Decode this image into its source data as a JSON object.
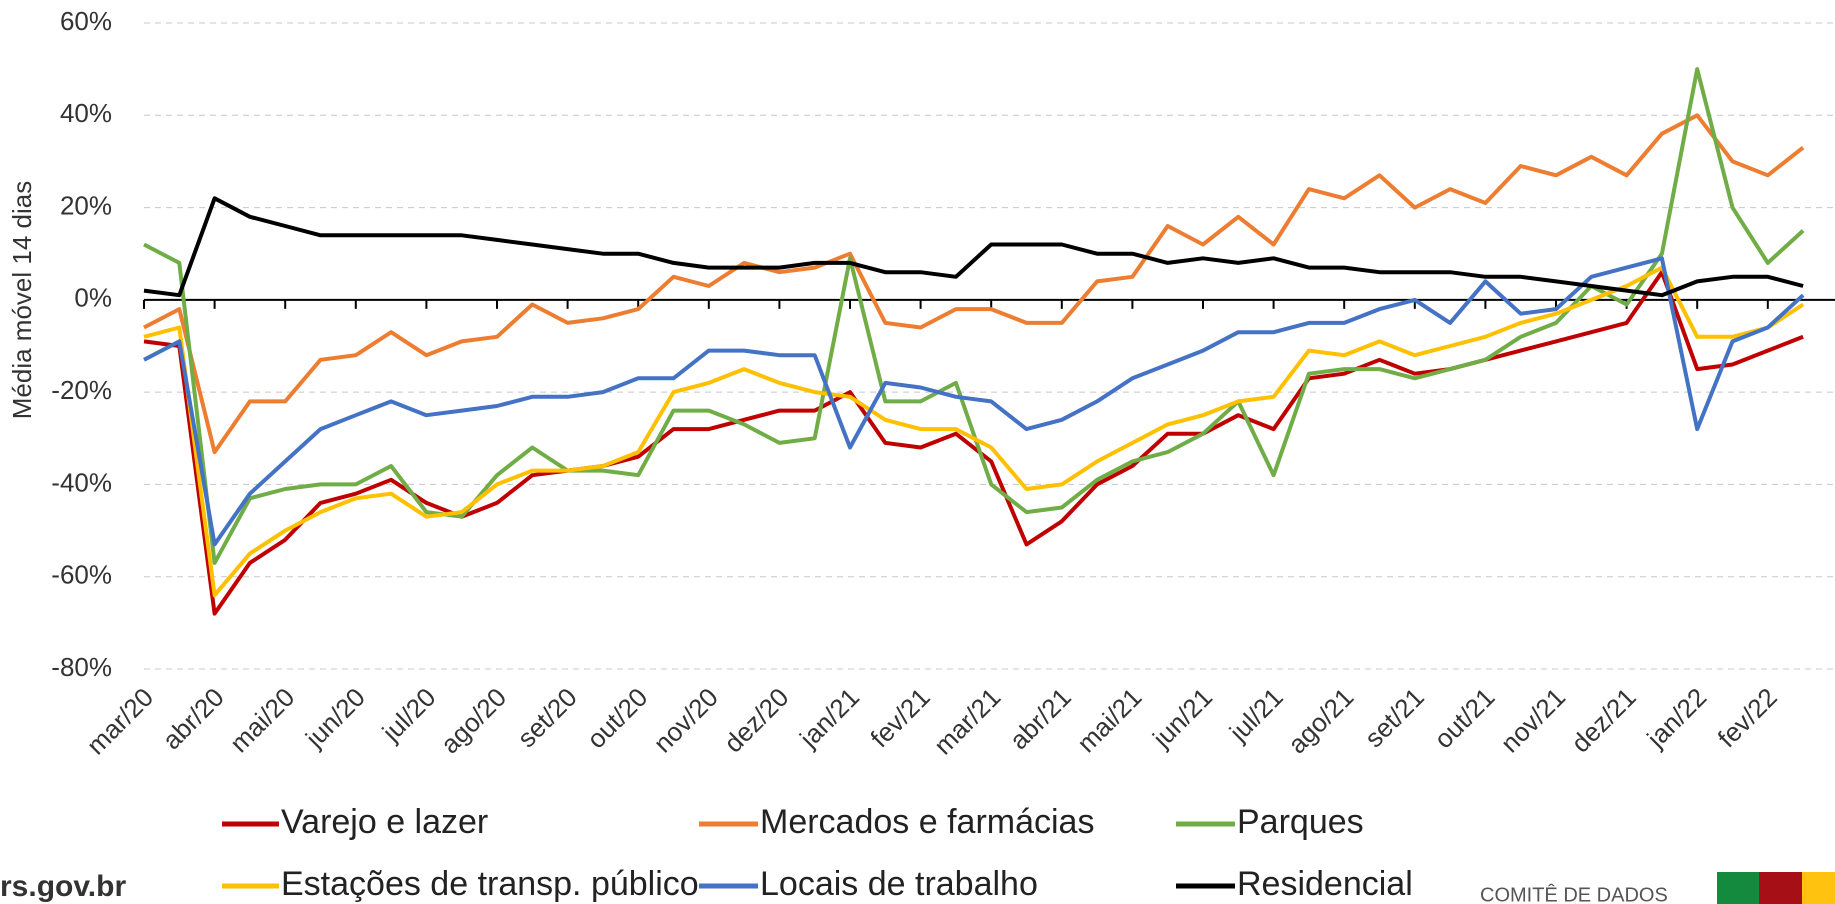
{
  "chart_data": {
    "type": "line",
    "y_axis_label": "Média móvel 14 dias",
    "categories": [
      "mar/20",
      null,
      "abr/20",
      null,
      "mai/20",
      null,
      "jun/20",
      null,
      "jul/20",
      null,
      "ago/20",
      null,
      "set/20",
      null,
      "out/20",
      null,
      "nov/20",
      null,
      "dez/20",
      null,
      "jan/21",
      null,
      "fev/21",
      null,
      "mar/21",
      null,
      "abr/21",
      null,
      "mai/21",
      null,
      "jun/21",
      null,
      "jul/21",
      null,
      "ago/21",
      null,
      "set/21",
      null,
      "out/21",
      null,
      "nov/21",
      null,
      "dez/21",
      null,
      "jan/22",
      null,
      "fev/22",
      null
    ],
    "ylim": [
      -80,
      60
    ],
    "yticks": [
      {
        "value": -80,
        "label": "-80%"
      },
      {
        "value": -60,
        "label": "-60%"
      },
      {
        "value": -40,
        "label": "-40%"
      },
      {
        "value": -20,
        "label": "-20%"
      },
      {
        "value": 0,
        "label": "0%"
      },
      {
        "value": 20,
        "label": "20%"
      },
      {
        "value": 40,
        "label": "40%"
      },
      {
        "value": 60,
        "label": "60%"
      }
    ],
    "grid": true,
    "legend": "bottom",
    "series": [
      {
        "name": "Varejo e lazer",
        "color": "#c00000",
        "values": [
          -9,
          -10,
          -68,
          -57,
          -52,
          -44,
          -42,
          -39,
          -44,
          -47,
          -44,
          -38,
          -37,
          -36,
          -34,
          -28,
          -28,
          -26,
          -24,
          -24,
          -20,
          -31,
          -32,
          -29,
          -35,
          -53,
          -48,
          -40,
          -36,
          -29,
          -29,
          -25,
          -28,
          -17,
          -16,
          -13,
          -16,
          -15,
          -13,
          -11,
          -9,
          -7,
          -5,
          6,
          -15,
          -14,
          -11,
          -8
        ]
      },
      {
        "name": "Mercados e farmácias",
        "color": "#ed7d31",
        "values": [
          -6,
          -2,
          -33,
          -22,
          -22,
          -13,
          -12,
          -7,
          -12,
          -9,
          -8,
          -1,
          -5,
          -4,
          -2,
          5,
          3,
          8,
          6,
          7,
          10,
          -5,
          -6,
          -2,
          -2,
          -5,
          -5,
          4,
          5,
          16,
          12,
          18,
          12,
          24,
          22,
          27,
          20,
          24,
          21,
          29,
          27,
          31,
          27,
          36,
          40,
          30,
          27,
          33
        ]
      },
      {
        "name": "Parques",
        "color": "#70ad47",
        "values": [
          12,
          8,
          -57,
          -43,
          -41,
          -40,
          -40,
          -36,
          -46,
          -47,
          -38,
          -32,
          -37,
          -37,
          -38,
          -24,
          -24,
          -27,
          -31,
          -30,
          9,
          -22,
          -22,
          -18,
          -40,
          -46,
          -45,
          -39,
          -35,
          -33,
          -29,
          -22,
          -38,
          -16,
          -15,
          -15,
          -17,
          -15,
          -13,
          -8,
          -5,
          3,
          -1,
          10,
          50,
          20,
          8,
          15
        ]
      },
      {
        "name": "Estações de transp. público",
        "color": "#ffc000",
        "values": [
          -8,
          -6,
          -64,
          -55,
          -50,
          -46,
          -43,
          -42,
          -47,
          -46,
          -40,
          -37,
          -37,
          -36,
          -33,
          -20,
          -18,
          -15,
          -18,
          -20,
          -21,
          -26,
          -28,
          -28,
          -32,
          -41,
          -40,
          -35,
          -31,
          -27,
          -25,
          -22,
          -21,
          -11,
          -12,
          -9,
          -12,
          -10,
          -8,
          -5,
          -3,
          0,
          3,
          7,
          -8,
          -8,
          -6,
          -1
        ]
      },
      {
        "name": "Locais de trabalho",
        "color": "#4472c4",
        "values": [
          -13,
          -9,
          -53,
          -42,
          -35,
          -28,
          -25,
          -22,
          -25,
          -24,
          -23,
          -21,
          -21,
          -20,
          -17,
          -17,
          -11,
          -11,
          -12,
          -12,
          -32,
          -18,
          -19,
          -21,
          -22,
          -28,
          -26,
          -22,
          -17,
          -14,
          -11,
          -7,
          -7,
          -5,
          -5,
          -2,
          0,
          -5,
          4,
          -3,
          -2,
          5,
          7,
          9,
          -28,
          -9,
          -6,
          1
        ]
      },
      {
        "name": "Residencial",
        "color": "#000000",
        "values": [
          2,
          1,
          22,
          18,
          16,
          14,
          14,
          14,
          14,
          14,
          13,
          12,
          11,
          10,
          10,
          8,
          7,
          7,
          7,
          8,
          8,
          6,
          6,
          5,
          12,
          12,
          12,
          10,
          10,
          8,
          9,
          8,
          9,
          7,
          7,
          6,
          6,
          6,
          5,
          5,
          4,
          3,
          2,
          1,
          4,
          5,
          5,
          3
        ]
      }
    ]
  },
  "footer": {
    "site": "rs.gov.br",
    "committee": "COMITÊ DE DADOS"
  }
}
